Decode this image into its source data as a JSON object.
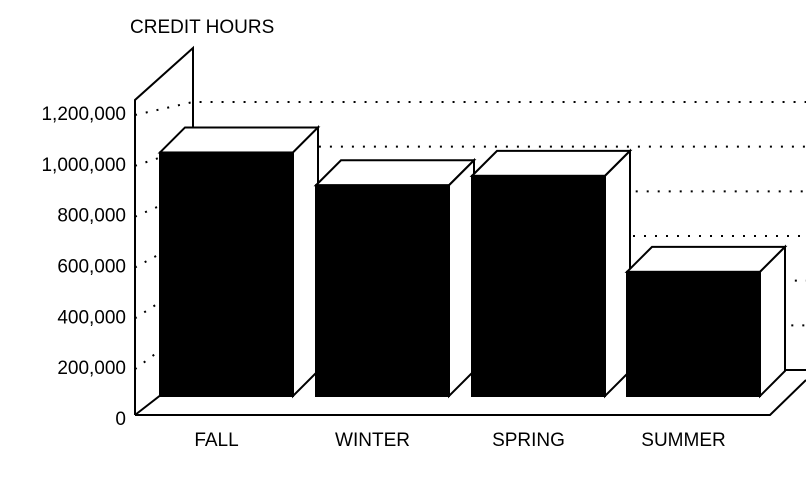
{
  "chart_data": {
    "type": "bar3d",
    "title": "CREDIT HOURS",
    "categories": [
      "FALL",
      "WINTER",
      "SPRING",
      "SUMMER"
    ],
    "values": [
      1040000,
      900000,
      940000,
      530000
    ],
    "color": "#000000",
    "ylim": [
      0,
      1200000
    ],
    "yticks": [
      0,
      {
        "value": 200000,
        "label": "200,000"
      },
      {
        "value": 400000,
        "label": "400,000"
      },
      {
        "value": 600000,
        "label": "600,000"
      },
      {
        "value": 800000,
        "label": "800,000"
      },
      {
        "value": 1000000,
        "label": "1,000,000"
      },
      {
        "value": 1200000,
        "label": "1,200,000"
      }
    ],
    "grid": true
  }
}
